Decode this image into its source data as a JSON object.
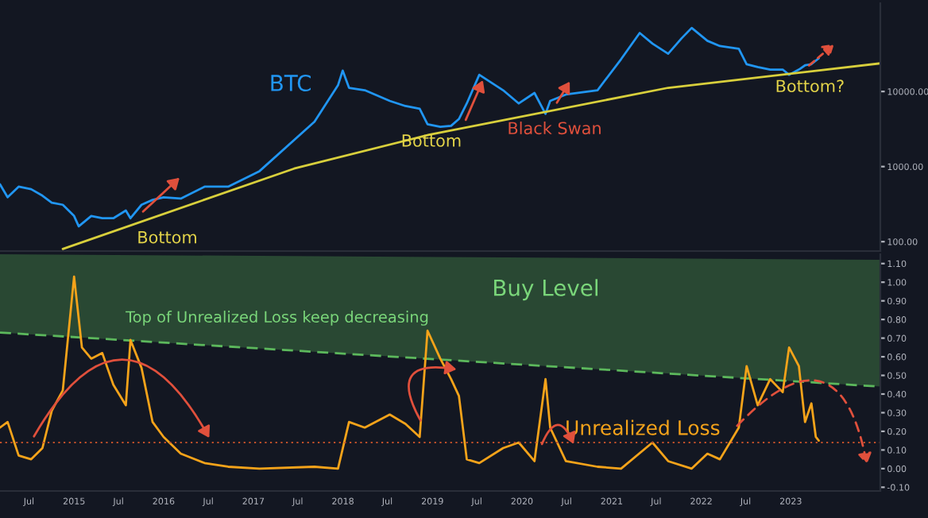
{
  "chart_data": [
    {
      "type": "line",
      "log": "y",
      "ylim": [
        75,
        150000
      ],
      "yticks": [
        {
          "value": 100,
          "label": "100.00"
        },
        {
          "value": 1000,
          "label": "1000.00"
        },
        {
          "value": 10000,
          "label": "10000.00"
        }
      ],
      "xlim": [
        "2014-03-05",
        "2024-01-01"
      ],
      "tick_labels": "y",
      "grid": false,
      "legend": false,
      "x": [
        "2014-03-05",
        "2014-04-05",
        "2014-05-20",
        "2014-07-10",
        "2014-08-25",
        "2014-10-02",
        "2014-11-16",
        "2015-01-01",
        "2015-01-20",
        "2015-03-12",
        "2015-04-26",
        "2015-06-10",
        "2015-07-31",
        "2015-08-19",
        "2015-10-03",
        "2015-11-17",
        "2016-01-01",
        "2016-03-11",
        "2016-06-16",
        "2016-09-20",
        "2017-01-26",
        "2017-09-07",
        "2017-12-12",
        "2017-12-31",
        "2018-01-26",
        "2018-03-31",
        "2018-07-11",
        "2018-09-13",
        "2018-11-10",
        "2018-12-12",
        "2019-02-02",
        "2019-03-18",
        "2019-04-19",
        "2019-05-21",
        "2019-07-11",
        "2019-10-16",
        "2019-12-19",
        "2020-02-21",
        "2020-04-06",
        "2020-04-25",
        "2020-06-28",
        "2020-11-04",
        "2021-02-08",
        "2021-04-25",
        "2021-06-16",
        "2021-08-19",
        "2021-10-13",
        "2021-11-23",
        "2022-01-26",
        "2022-03-18",
        "2022-06-03",
        "2022-07-05",
        "2022-08-19",
        "2022-10-09",
        "2022-11-29",
        "2022-12-25",
        "2023-02-03",
        "2023-02-28",
        "2023-03-26",
        "2023-04-25"
      ],
      "series": [
        {
          "color": "#2196f3",
          "values": [
            580,
            390,
            540,
            500,
            410,
            330,
            310,
            220,
            160,
            220,
            205,
            205,
            260,
            205,
            310,
            360,
            390,
            375,
            540,
            540,
            870,
            3960,
            12100,
            19000,
            11200,
            10400,
            7500,
            6400,
            5900,
            3670,
            3380,
            3490,
            4300,
            6930,
            16700,
            10400,
            6930,
            9560,
            5040,
            7500,
            9110,
            10400,
            26900,
            60100,
            43400,
            31800,
            51200,
            70300,
            47300,
            40300,
            37000,
            23100,
            21200,
            19600,
            19600,
            16700,
            19600,
            22300,
            23100,
            27700
          ]
        },
        {
          "type": "line",
          "color": "#d8cf3c",
          "x": [
            "2014-11-16",
            "2017-06-16",
            "2018-12-18",
            "2021-08-19",
            "2024-01-01"
          ],
          "values": [
            80,
            940,
            2650,
            11200,
            23700
          ]
        }
      ],
      "annotations": [
        "BTC",
        "Bottom",
        "Bottom",
        "Black Swan",
        "Bottom?"
      ]
    },
    {
      "type": "line",
      "ylim": [
        -0.12,
        1.15
      ],
      "yticks": [
        {
          "value": -0.1,
          "label": "-0.10"
        },
        {
          "value": 0,
          "label": "0.00"
        },
        {
          "value": 0.1,
          "label": "0.10"
        },
        {
          "value": 0.2,
          "label": "0.20"
        },
        {
          "value": 0.3,
          "label": "0.30"
        },
        {
          "value": 0.4,
          "label": "0.40"
        },
        {
          "value": 0.5,
          "label": "0.50"
        },
        {
          "value": 0.6,
          "label": "0.60"
        },
        {
          "value": 0.7,
          "label": "0.70"
        },
        {
          "value": 0.8,
          "label": "0.80"
        },
        {
          "value": 0.9,
          "label": "0.90"
        },
        {
          "value": 1.0,
          "label": "1.00"
        },
        {
          "value": 1.1,
          "label": "1.10"
        }
      ],
      "xlim": [
        "2014-03-05",
        "2024-01-01"
      ],
      "xticks": [
        {
          "value": "2014-07-01",
          "label": "Jul"
        },
        {
          "value": "2015-01-01",
          "label": "2015"
        },
        {
          "value": "2015-07-01",
          "label": "Jul"
        },
        {
          "value": "2016-01-01",
          "label": "2016"
        },
        {
          "value": "2016-07-01",
          "label": "Jul"
        },
        {
          "value": "2017-01-01",
          "label": "2017"
        },
        {
          "value": "2017-07-01",
          "label": "Jul"
        },
        {
          "value": "2018-01-01",
          "label": "2018"
        },
        {
          "value": "2018-07-01",
          "label": "Jul"
        },
        {
          "value": "2019-01-01",
          "label": "2019"
        },
        {
          "value": "2019-07-01",
          "label": "Jul"
        },
        {
          "value": "2020-01-01",
          "label": "2020"
        },
        {
          "value": "2020-07-01",
          "label": "Jul"
        },
        {
          "value": "2021-01-01",
          "label": "2021"
        },
        {
          "value": "2021-07-01",
          "label": "Jul"
        },
        {
          "value": "2022-01-01",
          "label": "2022"
        },
        {
          "value": "2022-07-01",
          "label": "Jul"
        },
        {
          "value": "2023-01-01",
          "label": "2023"
        }
      ],
      "grid": false,
      "legend": false,
      "x": [
        "2014-03-05",
        "2014-04-05",
        "2014-05-20",
        "2014-07-10",
        "2014-08-25",
        "2014-10-02",
        "2014-11-16",
        "2015-01-01",
        "2015-02-02",
        "2015-03-12",
        "2015-04-26",
        "2015-06-10",
        "2015-07-31",
        "2015-08-19",
        "2015-10-03",
        "2015-11-17",
        "2016-01-01",
        "2016-03-11",
        "2016-06-16",
        "2016-09-20",
        "2017-01-26",
        "2017-09-07",
        "2017-12-12",
        "2018-01-26",
        "2018-03-31",
        "2018-07-11",
        "2018-09-13",
        "2018-11-10",
        "2018-12-12",
        "2019-02-02",
        "2019-03-18",
        "2019-04-19",
        "2019-05-21",
        "2019-07-11",
        "2019-10-16",
        "2019-12-19",
        "2020-02-21",
        "2020-04-06",
        "2020-04-25",
        "2020-06-28",
        "2020-11-04",
        "2021-02-08",
        "2021-06-16",
        "2021-08-19",
        "2021-11-23",
        "2022-01-26",
        "2022-03-18",
        "2022-06-03",
        "2022-07-05",
        "2022-08-19",
        "2022-10-09",
        "2022-11-29",
        "2022-12-25",
        "2023-02-03",
        "2023-02-28",
        "2023-03-26",
        "2023-04-13",
        "2023-04-25"
      ],
      "series": [
        {
          "color": "#f5a31a",
          "values": [
            0.22,
            0.25,
            0.07,
            0.05,
            0.11,
            0.31,
            0.42,
            1.03,
            0.65,
            0.59,
            0.62,
            0.45,
            0.34,
            0.69,
            0.54,
            0.25,
            0.17,
            0.08,
            0.03,
            0.01,
            0.0,
            0.01,
            0.0,
            0.25,
            0.22,
            0.29,
            0.24,
            0.17,
            0.74,
            0.59,
            0.48,
            0.39,
            0.05,
            0.03,
            0.11,
            0.14,
            0.04,
            0.48,
            0.22,
            0.04,
            0.01,
            0.0,
            0.14,
            0.04,
            0.0,
            0.08,
            0.05,
            0.22,
            0.55,
            0.34,
            0.48,
            0.41,
            0.65,
            0.55,
            0.25,
            0.35,
            0.17,
            0.15
          ]
        },
        {
          "type": "line",
          "color": "#5cb85c",
          "line_style": "dashed",
          "x": [
            "2014-03-05",
            "2024-01-01"
          ],
          "values": [
            0.73,
            0.44
          ],
          "lower": [
            0.73,
            0.44
          ],
          "upper": [
            1.15,
            1.12
          ]
        }
      ],
      "ref_lines": [
        {
          "axis": "y",
          "value": 0.14,
          "color": "#c0502a",
          "line_style": "dotted"
        }
      ],
      "annotations": [
        "Top of Unrealized Loss keep decreasing",
        "Buy Level",
        "Unrealized Loss"
      ]
    }
  ]
}
